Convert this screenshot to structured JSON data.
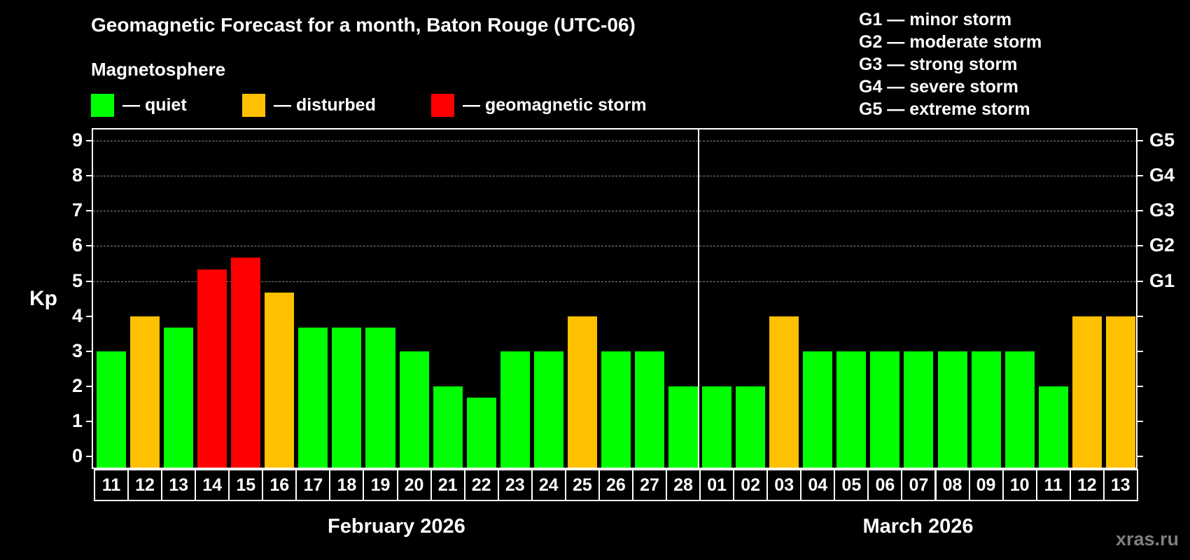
{
  "header": {
    "title": "Geomagnetic Forecast for a month, Baton Rouge (UTC-06)",
    "magnetosphere_title": "Magnetosphere"
  },
  "legend": {
    "items": [
      {
        "label": "— quiet",
        "color": "#00ff00"
      },
      {
        "label": "— disturbed",
        "color": "#ffc000"
      },
      {
        "label": "— geomagnetic storm",
        "color": "#ff0000"
      }
    ]
  },
  "g_scale": {
    "items": [
      "G1 — minor storm",
      "G2 — moderate storm",
      "G3 — strong storm",
      "G4 — severe storm",
      "G5 — extreme storm"
    ]
  },
  "axis": {
    "ylabel": "Kp",
    "yticks": [
      "0",
      "1",
      "2",
      "3",
      "4",
      "5",
      "6",
      "7",
      "8",
      "9"
    ],
    "right_ticks": [
      {
        "kp": 5,
        "label": "G1"
      },
      {
        "kp": 6,
        "label": "G2"
      },
      {
        "kp": 7,
        "label": "G3"
      },
      {
        "kp": 8,
        "label": "G4"
      },
      {
        "kp": 9,
        "label": "G5"
      }
    ]
  },
  "months": [
    {
      "label": "February 2026"
    },
    {
      "label": "March 2026"
    }
  ],
  "watermark": "xras.ru",
  "colors": {
    "quiet": "#00ff00",
    "disturbed": "#ffc000",
    "storm": "#ff0000",
    "background": "#000000",
    "grid": "#8a8a8a",
    "watermark": "#7f7f7f"
  },
  "chart_data": {
    "type": "bar",
    "title": "Geomagnetic Forecast for a month, Baton Rouge (UTC-06)",
    "xlabel": "",
    "ylabel": "Kp",
    "ylim": [
      0,
      9
    ],
    "grid": true,
    "legend_position": "top",
    "categories": [
      "11",
      "12",
      "13",
      "14",
      "15",
      "16",
      "17",
      "18",
      "19",
      "20",
      "21",
      "22",
      "23",
      "24",
      "25",
      "26",
      "27",
      "28",
      "01",
      "02",
      "03",
      "04",
      "05",
      "06",
      "07",
      "08",
      "09",
      "10",
      "11",
      "12",
      "13"
    ],
    "month_groups": [
      {
        "label": "February 2026",
        "start_index": 0,
        "end_index": 17
      },
      {
        "label": "March 2026",
        "start_index": 18,
        "end_index": 30
      }
    ],
    "values": [
      3,
      4,
      3.67,
      5.33,
      5.67,
      4.67,
      3.67,
      3.67,
      3.67,
      3,
      2,
      1.67,
      3,
      3,
      4,
      3,
      3,
      2,
      2,
      2,
      4,
      3,
      3,
      3,
      3,
      3,
      3,
      3,
      2,
      4,
      4
    ],
    "status": [
      "quiet",
      "disturbed",
      "quiet",
      "storm",
      "storm",
      "disturbed",
      "quiet",
      "quiet",
      "quiet",
      "quiet",
      "quiet",
      "quiet",
      "quiet",
      "quiet",
      "disturbed",
      "quiet",
      "quiet",
      "quiet",
      "quiet",
      "quiet",
      "disturbed",
      "quiet",
      "quiet",
      "quiet",
      "quiet",
      "quiet",
      "quiet",
      "quiet",
      "quiet",
      "disturbed",
      "disturbed"
    ],
    "right_axis_labels": {
      "5": "G1",
      "6": "G2",
      "7": "G3",
      "8": "G4",
      "9": "G5"
    }
  }
}
